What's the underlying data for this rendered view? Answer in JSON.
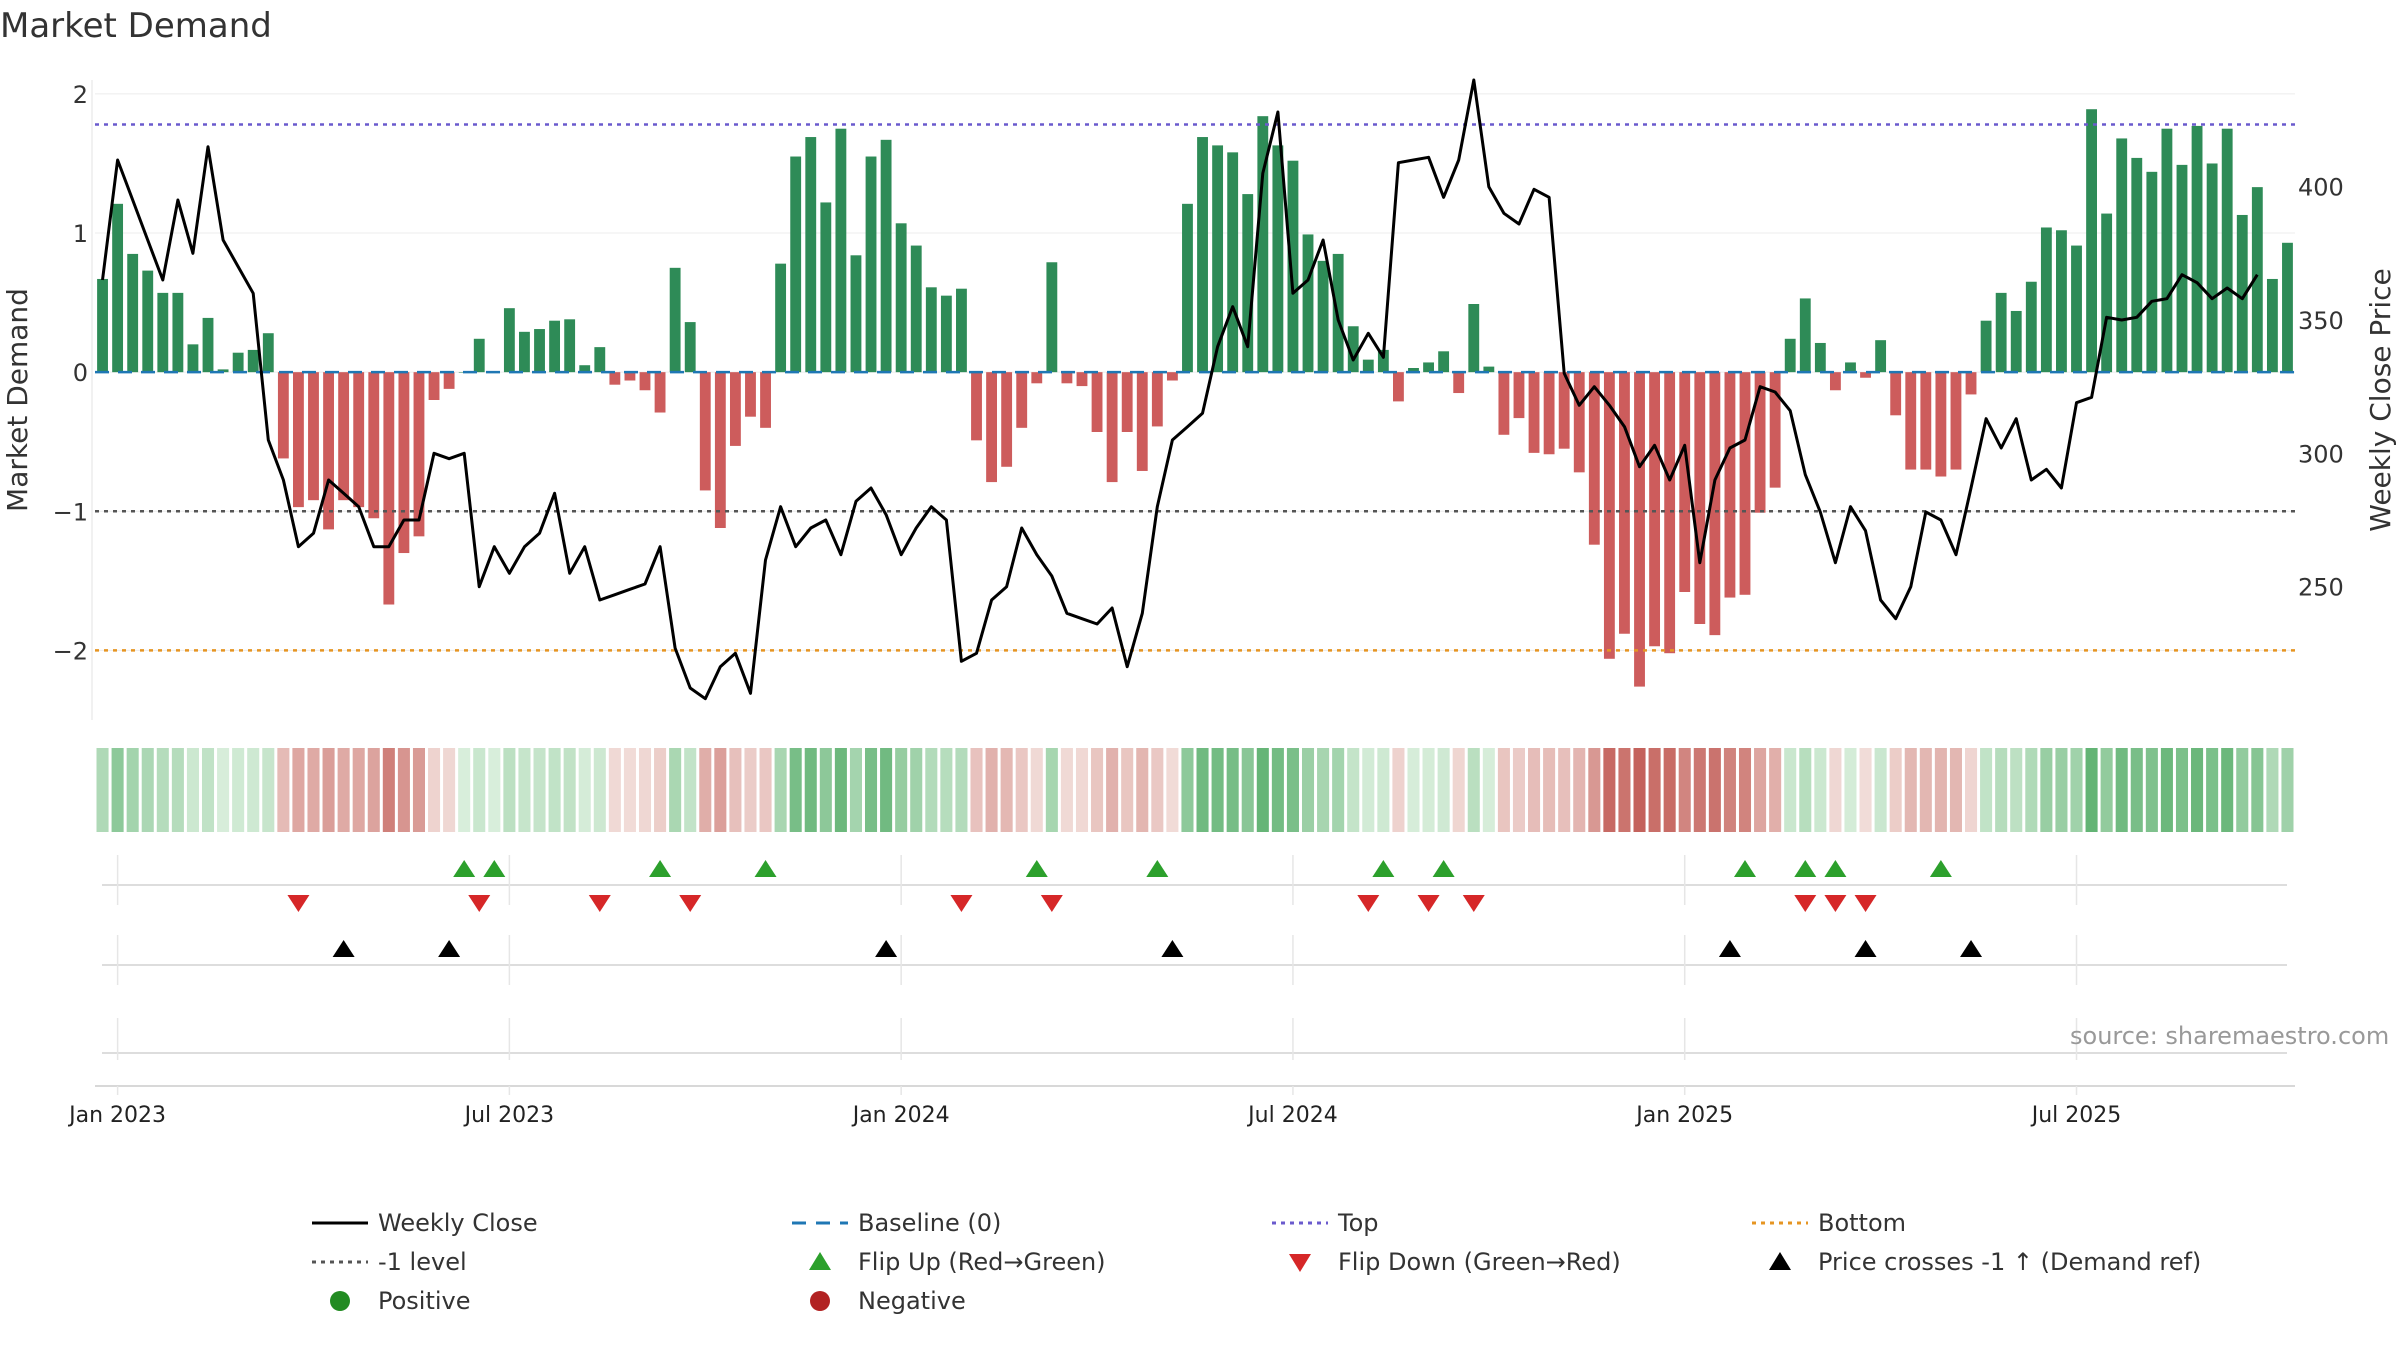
{
  "title": "Market Demand",
  "source": "source: sharemaestro.com",
  "colors": {
    "positive": "#2e8b57",
    "negative": "#cd5c5c",
    "price": "#000000",
    "baseline": "#1f77b4",
    "top": "#6a5acd",
    "bottom": "#e69522",
    "minus_one": "#555555",
    "flip_up": "#2ca02c",
    "flip_down": "#d62728",
    "cross": "#000000"
  },
  "chart_data": {
    "type": "bar",
    "title": "Market Demand",
    "ylabel": "Market Demand",
    "y2label": "Weekly Close Price",
    "ylim": [
      -2.5,
      2.1
    ],
    "y2lim": [
      200,
      440
    ],
    "yticks": [
      "2",
      "1",
      "0",
      "−1",
      "−2"
    ],
    "yticks_values": [
      2,
      1,
      0,
      -1,
      -2
    ],
    "y2ticks": [
      "400",
      "350",
      "300",
      "250"
    ],
    "y2ticks_values": [
      400,
      350,
      300,
      250
    ],
    "xticks": [
      "Jan 2023",
      "Jul 2023",
      "Jan 2024",
      "Jul 2024",
      "Jan 2025",
      "Jul 2025"
    ],
    "xticks_week": [
      1,
      27,
      53,
      79,
      105,
      131
    ],
    "reference_lines": {
      "top": 1.78,
      "minus_one": -1.0,
      "bottom": -2.0,
      "baseline": 0
    },
    "demand": [
      0.67,
      1.21,
      0.85,
      0.73,
      0.57,
      0.57,
      0.2,
      0.39,
      0.02,
      0.14,
      0.16,
      0.28,
      -0.62,
      -0.97,
      -0.92,
      -1.13,
      -0.92,
      -0.97,
      -1.05,
      -1.67,
      -1.3,
      -1.18,
      -0.2,
      -0.12,
      0.0,
      0.24,
      0.0,
      0.46,
      0.29,
      0.31,
      0.37,
      0.38,
      0.05,
      0.18,
      -0.09,
      -0.06,
      -0.13,
      -0.29,
      0.75,
      0.36,
      -0.85,
      -1.12,
      -0.53,
      -0.32,
      -0.4,
      0.78,
      1.55,
      1.69,
      1.22,
      1.75,
      0.84,
      1.55,
      1.67,
      1.07,
      0.91,
      0.61,
      0.55,
      0.6,
      -0.49,
      -0.79,
      -0.68,
      -0.4,
      -0.08,
      0.79,
      -0.08,
      -0.1,
      -0.43,
      -0.79,
      -0.43,
      -0.71,
      -0.39,
      -0.06,
      1.21,
      1.69,
      1.63,
      1.58,
      1.28,
      1.84,
      1.63,
      1.52,
      0.99,
      0.8,
      0.85,
      0.33,
      0.09,
      0.16,
      -0.21,
      0.03,
      0.07,
      0.15,
      -0.15,
      0.49,
      0.04,
      -0.45,
      -0.33,
      -0.58,
      -0.59,
      -0.55,
      -0.72,
      -1.24,
      -2.06,
      -1.88,
      -2.26,
      -1.97,
      -2.02,
      -1.58,
      -1.81,
      -1.89,
      -1.62,
      -1.6,
      -1.01,
      -0.83,
      0.24,
      0.53,
      0.21,
      -0.13,
      0.07,
      -0.04,
      0.23,
      -0.31,
      -0.7,
      -0.7,
      -0.75,
      -0.7,
      -0.16,
      0.37,
      0.57,
      0.44,
      0.65,
      1.04,
      1.02,
      0.91,
      1.89,
      1.14,
      1.68,
      1.54,
      1.44,
      1.75,
      1.49,
      1.77,
      1.5,
      1.75,
      1.13,
      1.33,
      0.67,
      0.93
    ],
    "price": [
      365,
      410,
      395,
      380,
      365,
      395,
      375,
      415,
      380,
      370,
      360,
      305,
      290,
      265,
      270,
      290,
      285,
      280,
      265,
      265,
      275,
      275,
      300,
      298,
      300,
      250,
      265,
      255,
      265,
      270,
      285,
      255,
      265,
      245,
      247,
      249,
      251,
      265,
      227,
      212,
      208,
      220,
      225,
      210,
      260,
      280,
      265,
      272,
      275,
      262,
      282,
      287,
      277,
      262,
      272,
      280,
      275,
      222,
      225,
      245,
      250,
      272,
      262,
      254,
      240,
      238,
      236,
      242,
      220,
      240,
      280,
      305,
      310,
      315,
      340,
      355,
      340,
      405,
      428,
      360,
      365,
      380,
      350,
      335,
      345,
      336,
      409,
      410,
      411,
      396,
      410,
      440,
      400,
      390,
      386,
      399,
      396,
      330,
      318,
      325,
      318,
      310,
      295,
      303,
      290,
      303,
      259,
      290,
      302,
      305,
      325,
      323,
      316,
      292,
      278,
      259,
      280,
      271,
      245,
      238,
      250,
      278,
      275,
      262,
      287,
      313,
      302,
      313,
      290,
      294,
      287,
      319,
      321,
      351,
      350,
      351,
      357,
      358,
      367,
      364,
      358,
      362,
      358,
      367
    ],
    "flip_up_weeks": [
      24,
      26,
      37,
      44,
      62,
      70,
      85,
      89,
      109,
      113,
      115,
      122
    ],
    "flip_down_weeks": [
      13,
      25,
      33,
      39,
      57,
      63,
      84,
      88,
      91,
      113,
      115,
      117
    ],
    "cross_weeks": [
      16,
      23,
      52,
      71,
      108,
      117,
      124
    ]
  },
  "legend": [
    {
      "key": "weekly_close",
      "label": "Weekly Close",
      "symbol": "line"
    },
    {
      "key": "baseline",
      "label": "Baseline (0)",
      "symbol": "dash"
    },
    {
      "key": "top",
      "label": "Top",
      "symbol": "dot"
    },
    {
      "key": "bottom",
      "label": "Bottom",
      "symbol": "dot"
    },
    {
      "key": "minus_one",
      "label": "-1 level",
      "symbol": "dot"
    },
    {
      "key": "flip_up",
      "label": "Flip Up (Red→Green)",
      "symbol": "tri-up"
    },
    {
      "key": "flip_down",
      "label": "Flip Down (Green→Red)",
      "symbol": "tri-down"
    },
    {
      "key": "cross",
      "label": "Price crosses -1 ↑ (Demand ref)",
      "symbol": "tri-up"
    },
    {
      "key": "positive",
      "label": "Positive",
      "symbol": "circle"
    },
    {
      "key": "negative",
      "label": "Negative",
      "symbol": "circle"
    }
  ]
}
